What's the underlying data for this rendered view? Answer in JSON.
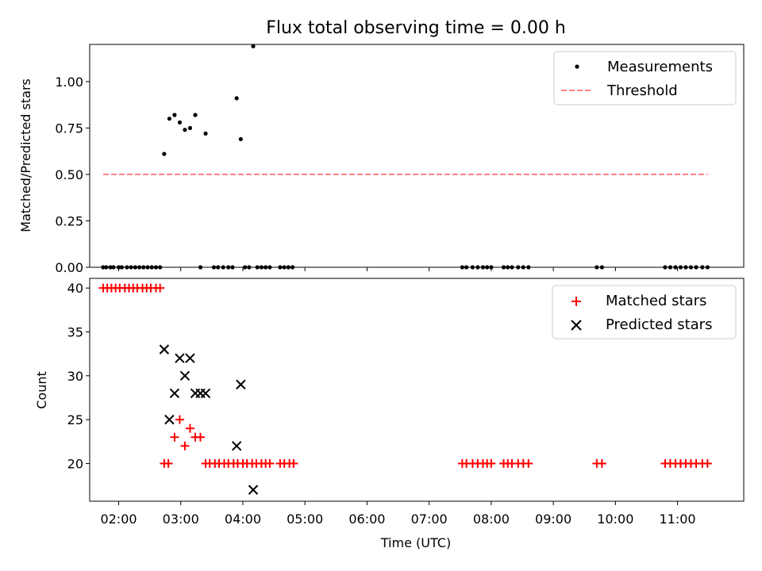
{
  "chart_data": [
    {
      "type": "scatter",
      "title": "Flux total observing time = 0.00 h",
      "xlabel": "",
      "ylabel": "Matched/Predicted stars",
      "xlim": [
        "01:32",
        "12:04"
      ],
      "ylim": [
        0,
        1.2
      ],
      "yticks": [
        "0.00",
        "0.25",
        "0.50",
        "0.75",
        "1.00"
      ],
      "grid": false,
      "legend": "top-right",
      "series": [
        {
          "name": "Measurements",
          "style": "dot",
          "color": "#000000",
          "points": [
            [
              "01:45",
              0
            ],
            [
              "01:48",
              0
            ],
            [
              "01:52",
              0
            ],
            [
              "01:55",
              0
            ],
            [
              "02:00",
              0
            ],
            [
              "02:03",
              0
            ],
            [
              "02:08",
              0
            ],
            [
              "02:12",
              0
            ],
            [
              "02:16",
              0
            ],
            [
              "02:20",
              0
            ],
            [
              "02:24",
              0
            ],
            [
              "02:28",
              0
            ],
            [
              "02:32",
              0
            ],
            [
              "02:36",
              0
            ],
            [
              "02:40",
              0
            ],
            [
              "02:44",
              0.61
            ],
            [
              "02:49",
              0.8
            ],
            [
              "02:54",
              0.82
            ],
            [
              "02:59",
              0.78
            ],
            [
              "03:04",
              0.74
            ],
            [
              "03:09",
              0.75
            ],
            [
              "03:14",
              0.82
            ],
            [
              "03:19",
              0
            ],
            [
              "03:24",
              0.72
            ],
            [
              "03:32",
              0
            ],
            [
              "03:36",
              0
            ],
            [
              "03:41",
              0
            ],
            [
              "03:46",
              0
            ],
            [
              "03:50",
              0
            ],
            [
              "03:54",
              0.91
            ],
            [
              "03:58",
              0.69
            ],
            [
              "04:02",
              0
            ],
            [
              "04:06",
              0
            ],
            [
              "04:10",
              1.19
            ],
            [
              "04:14",
              0
            ],
            [
              "04:18",
              0
            ],
            [
              "04:22",
              0
            ],
            [
              "04:26",
              0
            ],
            [
              "04:36",
              0
            ],
            [
              "04:40",
              0
            ],
            [
              "04:44",
              0
            ],
            [
              "04:48",
              0
            ],
            [
              "07:32",
              0
            ],
            [
              "07:36",
              0
            ],
            [
              "07:42",
              0
            ],
            [
              "07:47",
              0
            ],
            [
              "07:52",
              0
            ],
            [
              "07:56",
              0
            ],
            [
              "08:00",
              0
            ],
            [
              "08:12",
              0
            ],
            [
              "08:16",
              0
            ],
            [
              "08:20",
              0
            ],
            [
              "08:26",
              0
            ],
            [
              "08:31",
              0
            ],
            [
              "08:36",
              0
            ],
            [
              "09:42",
              0
            ],
            [
              "09:47",
              0
            ],
            [
              "10:48",
              0
            ],
            [
              "10:53",
              0
            ],
            [
              "10:58",
              0
            ],
            [
              "11:03",
              0
            ],
            [
              "11:08",
              0
            ],
            [
              "11:13",
              0
            ],
            [
              "11:18",
              0
            ],
            [
              "11:24",
              0
            ],
            [
              "11:29",
              0
            ]
          ]
        },
        {
          "name": "Threshold",
          "style": "dashed-line",
          "color": "#ff7f7f",
          "points": [
            [
              "01:45",
              0.5
            ],
            [
              "11:29",
              0.5
            ]
          ]
        }
      ]
    },
    {
      "type": "scatter",
      "title": "",
      "xlabel": "Time (UTC)",
      "ylabel": "Count",
      "xlim": [
        "01:32",
        "12:04"
      ],
      "ylim": [
        15.7,
        41.1
      ],
      "yticks": [
        "20",
        "25",
        "30",
        "35",
        "40"
      ],
      "xticks": [
        "02:00",
        "03:00",
        "04:00",
        "05:00",
        "06:00",
        "07:00",
        "08:00",
        "09:00",
        "10:00",
        "11:00"
      ],
      "grid": false,
      "legend": "top-right",
      "series": [
        {
          "name": "Matched stars",
          "style": "plus",
          "color": "#ff0000",
          "points": [
            [
              "01:45",
              40
            ],
            [
              "01:49",
              40
            ],
            [
              "01:53",
              40
            ],
            [
              "01:57",
              40
            ],
            [
              "02:01",
              40
            ],
            [
              "02:06",
              40
            ],
            [
              "02:10",
              40
            ],
            [
              "02:14",
              40
            ],
            [
              "02:18",
              40
            ],
            [
              "02:23",
              40
            ],
            [
              "02:27",
              40
            ],
            [
              "02:31",
              40
            ],
            [
              "02:36",
              40
            ],
            [
              "02:40",
              40
            ],
            [
              "02:44",
              20
            ],
            [
              "02:48",
              20
            ],
            [
              "02:54",
              23
            ],
            [
              "02:59",
              25
            ],
            [
              "03:04",
              22
            ],
            [
              "03:09",
              24
            ],
            [
              "03:14",
              23
            ],
            [
              "03:19",
              23
            ],
            [
              "03:24",
              20
            ],
            [
              "03:28",
              20
            ],
            [
              "03:33",
              20
            ],
            [
              "03:37",
              20
            ],
            [
              "03:42",
              20
            ],
            [
              "03:46",
              20
            ],
            [
              "03:51",
              20
            ],
            [
              "03:55",
              20
            ],
            [
              "04:00",
              20
            ],
            [
              "04:04",
              20
            ],
            [
              "04:09",
              20
            ],
            [
              "04:13",
              20
            ],
            [
              "04:18",
              20
            ],
            [
              "04:22",
              20
            ],
            [
              "04:26",
              20
            ],
            [
              "04:36",
              20
            ],
            [
              "04:40",
              20
            ],
            [
              "04:45",
              20
            ],
            [
              "04:49",
              20
            ],
            [
              "07:32",
              20
            ],
            [
              "07:36",
              20
            ],
            [
              "07:42",
              20
            ],
            [
              "07:47",
              20
            ],
            [
              "07:52",
              20
            ],
            [
              "07:56",
              20
            ],
            [
              "08:00",
              20
            ],
            [
              "08:12",
              20
            ],
            [
              "08:16",
              20
            ],
            [
              "08:20",
              20
            ],
            [
              "08:26",
              20
            ],
            [
              "08:31",
              20
            ],
            [
              "08:36",
              20
            ],
            [
              "09:42",
              20
            ],
            [
              "09:47",
              20
            ],
            [
              "10:48",
              20
            ],
            [
              "10:53",
              20
            ],
            [
              "10:58",
              20
            ],
            [
              "11:03",
              20
            ],
            [
              "11:08",
              20
            ],
            [
              "11:13",
              20
            ],
            [
              "11:18",
              20
            ],
            [
              "11:24",
              20
            ],
            [
              "11:29",
              20
            ]
          ]
        },
        {
          "name": "Predicted stars",
          "style": "x",
          "color": "#000000",
          "points": [
            [
              "02:44",
              33
            ],
            [
              "02:49",
              25
            ],
            [
              "02:54",
              28
            ],
            [
              "02:59",
              32
            ],
            [
              "03:04",
              30
            ],
            [
              "03:09",
              32
            ],
            [
              "03:14",
              28
            ],
            [
              "03:19",
              28
            ],
            [
              "03:24",
              28
            ],
            [
              "03:54",
              22
            ],
            [
              "03:58",
              29
            ],
            [
              "04:10",
              17
            ]
          ]
        }
      ]
    }
  ]
}
